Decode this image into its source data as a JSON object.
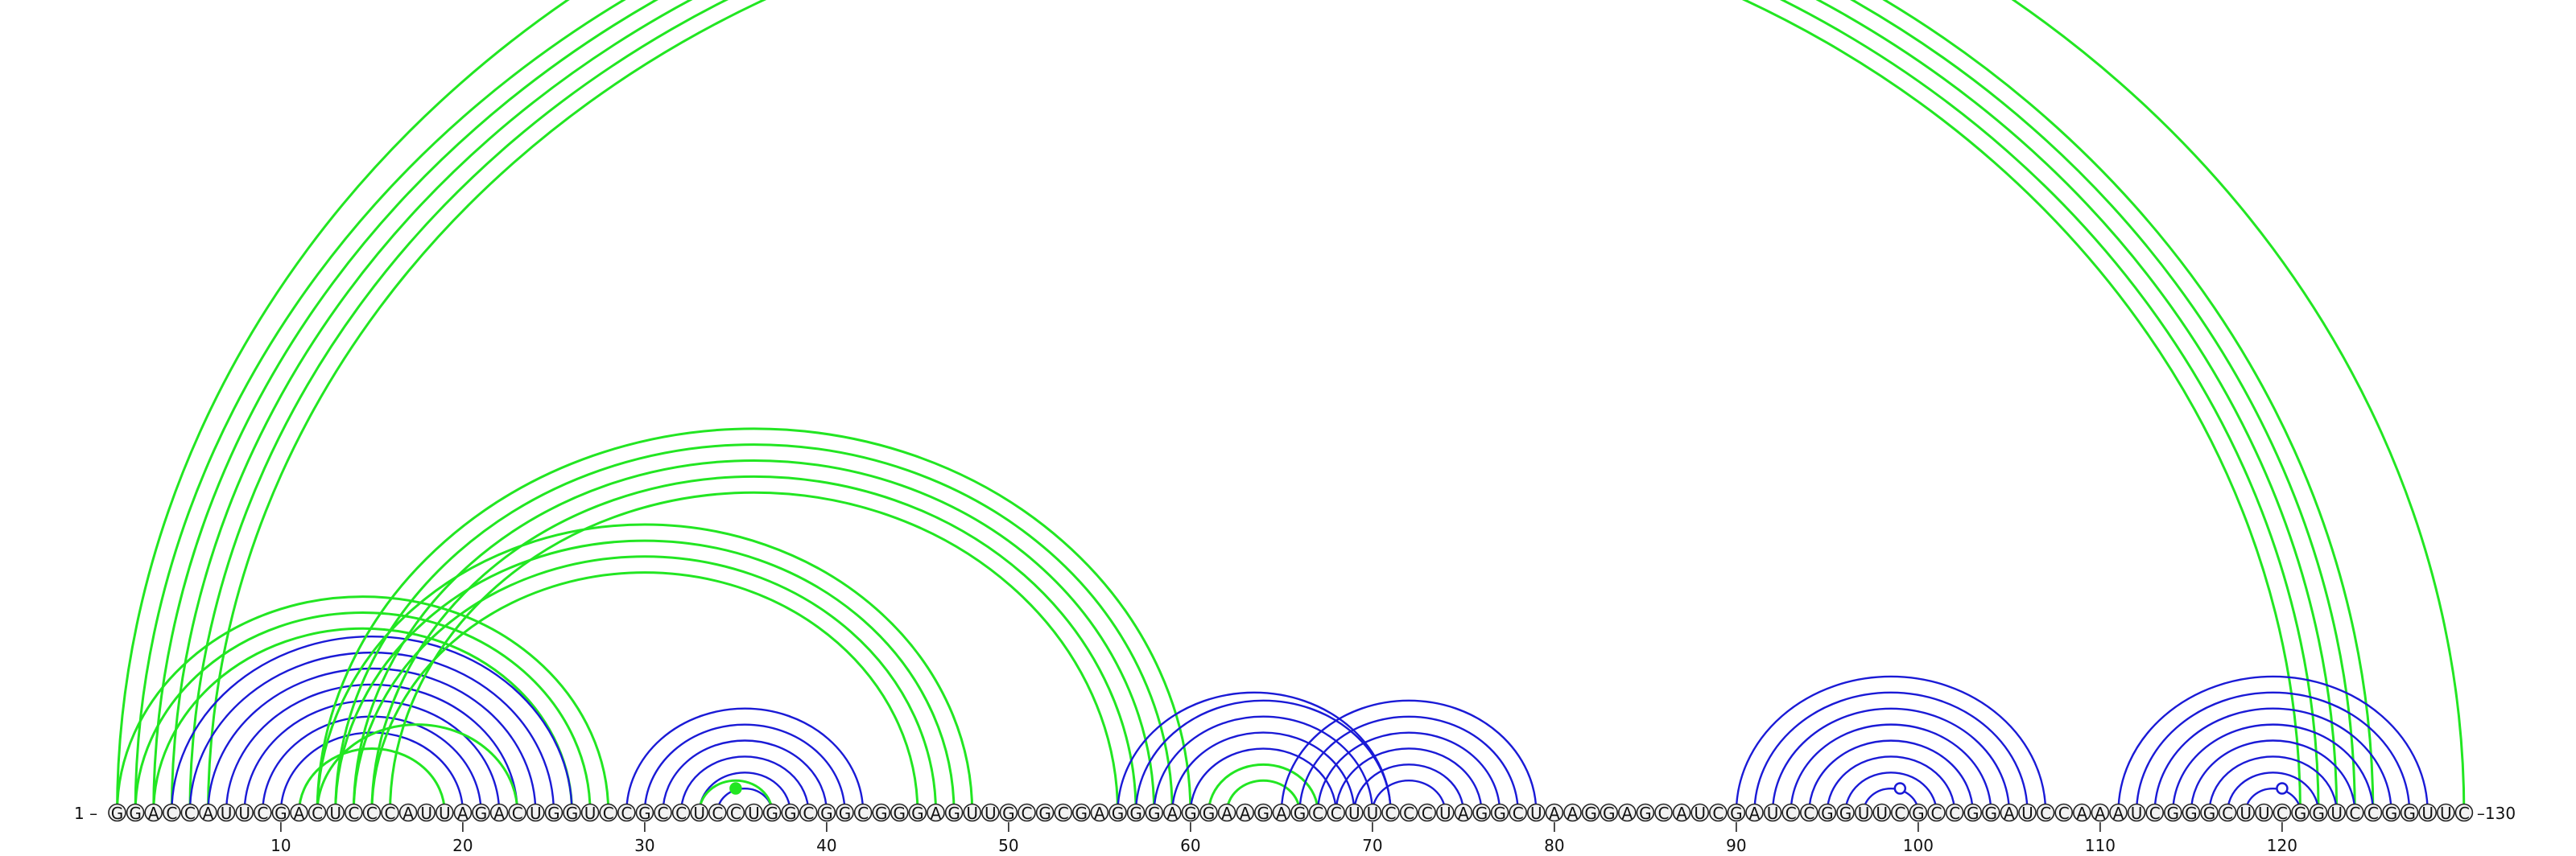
{
  "sequence": "GGACCAUUCGACUCCCAUUAGACUGGUCCGCCUCCUGGCGGCGGGAGUUGCGCGAGGGAGGAAGAGCCUUCCCUAGGCUAAGGAGCAUCGAUCCGGUUCGCCGGAUCCAAAUCGGGCUUCGGUCCGGUUC",
  "start_label": "1",
  "end_label": "130",
  "ticks": [
    10,
    20,
    30,
    40,
    50,
    60,
    70,
    80,
    90,
    100,
    110,
    120
  ],
  "colors": {
    "green": "#22e622",
    "blue": "#1a1ad6"
  },
  "markers": [
    {
      "pos": 35,
      "filled": true,
      "color": "green"
    },
    {
      "pos": 99,
      "filled": false,
      "color": "blue"
    },
    {
      "pos": 120,
      "filled": false,
      "color": "blue"
    }
  ],
  "pairs": [
    {
      "i": 1,
      "j": 130,
      "color": "green"
    },
    {
      "i": 2,
      "j": 125,
      "color": "green"
    },
    {
      "i": 3,
      "j": 124,
      "color": "green"
    },
    {
      "i": 4,
      "j": 123,
      "color": "green"
    },
    {
      "i": 5,
      "j": 122,
      "color": "green"
    },
    {
      "i": 6,
      "j": 121,
      "color": "green"
    },
    {
      "i": 1,
      "j": 28,
      "color": "green"
    },
    {
      "i": 2,
      "j": 27,
      "color": "green"
    },
    {
      "i": 3,
      "j": 26,
      "color": "green"
    },
    {
      "i": 4,
      "j": 26,
      "color": "blue"
    },
    {
      "i": 5,
      "j": 25,
      "color": "blue"
    },
    {
      "i": 6,
      "j": 24,
      "color": "blue"
    },
    {
      "i": 7,
      "j": 23,
      "color": "blue"
    },
    {
      "i": 8,
      "j": 22,
      "color": "blue"
    },
    {
      "i": 9,
      "j": 21,
      "color": "blue"
    },
    {
      "i": 10,
      "j": 20,
      "color": "blue"
    },
    {
      "i": 11,
      "j": 19,
      "color": "green"
    },
    {
      "i": 12,
      "j": 23,
      "color": "green"
    },
    {
      "i": 12,
      "j": 48,
      "color": "green"
    },
    {
      "i": 13,
      "j": 47,
      "color": "green"
    },
    {
      "i": 14,
      "j": 46,
      "color": "green"
    },
    {
      "i": 15,
      "j": 45,
      "color": "green"
    },
    {
      "i": 12,
      "j": 60,
      "color": "green"
    },
    {
      "i": 13,
      "j": 59,
      "color": "green"
    },
    {
      "i": 14,
      "j": 58,
      "color": "green"
    },
    {
      "i": 15,
      "j": 57,
      "color": "green"
    },
    {
      "i": 16,
      "j": 56,
      "color": "green"
    },
    {
      "i": 29,
      "j": 42,
      "color": "blue"
    },
    {
      "i": 30,
      "j": 41,
      "color": "blue"
    },
    {
      "i": 31,
      "j": 40,
      "color": "blue"
    },
    {
      "i": 32,
      "j": 39,
      "color": "blue"
    },
    {
      "i": 33,
      "j": 38,
      "color": "blue"
    },
    {
      "i": 34,
      "j": 37,
      "color": "blue"
    },
    {
      "i": 33,
      "j": 37,
      "color": "green"
    },
    {
      "i": 56,
      "j": 71,
      "color": "blue"
    },
    {
      "i": 57,
      "j": 71,
      "color": "blue"
    },
    {
      "i": 58,
      "j": 70,
      "color": "blue"
    },
    {
      "i": 59,
      "j": 69,
      "color": "blue"
    },
    {
      "i": 60,
      "j": 68,
      "color": "blue"
    },
    {
      "i": 61,
      "j": 67,
      "color": "green"
    },
    {
      "i": 62,
      "j": 66,
      "color": "green"
    },
    {
      "i": 65,
      "j": 79,
      "color": "blue"
    },
    {
      "i": 66,
      "j": 78,
      "color": "blue"
    },
    {
      "i": 67,
      "j": 77,
      "color": "blue"
    },
    {
      "i": 68,
      "j": 76,
      "color": "blue"
    },
    {
      "i": 69,
      "j": 75,
      "color": "blue"
    },
    {
      "i": 70,
      "j": 74,
      "color": "blue"
    },
    {
      "i": 90,
      "j": 107,
      "color": "blue"
    },
    {
      "i": 91,
      "j": 106,
      "color": "blue"
    },
    {
      "i": 92,
      "j": 105,
      "color": "blue"
    },
    {
      "i": 93,
      "j": 104,
      "color": "blue"
    },
    {
      "i": 94,
      "j": 103,
      "color": "blue"
    },
    {
      "i": 95,
      "j": 102,
      "color": "blue"
    },
    {
      "i": 96,
      "j": 101,
      "color": "blue"
    },
    {
      "i": 97,
      "j": 100,
      "color": "blue"
    },
    {
      "i": 111,
      "j": 128,
      "color": "blue"
    },
    {
      "i": 112,
      "j": 127,
      "color": "blue"
    },
    {
      "i": 113,
      "j": 126,
      "color": "blue"
    },
    {
      "i": 114,
      "j": 125,
      "color": "blue"
    },
    {
      "i": 115,
      "j": 124,
      "color": "blue"
    },
    {
      "i": 116,
      "j": 123,
      "color": "blue"
    },
    {
      "i": 117,
      "j": 122,
      "color": "blue"
    },
    {
      "i": 118,
      "j": 121,
      "color": "blue"
    }
  ]
}
